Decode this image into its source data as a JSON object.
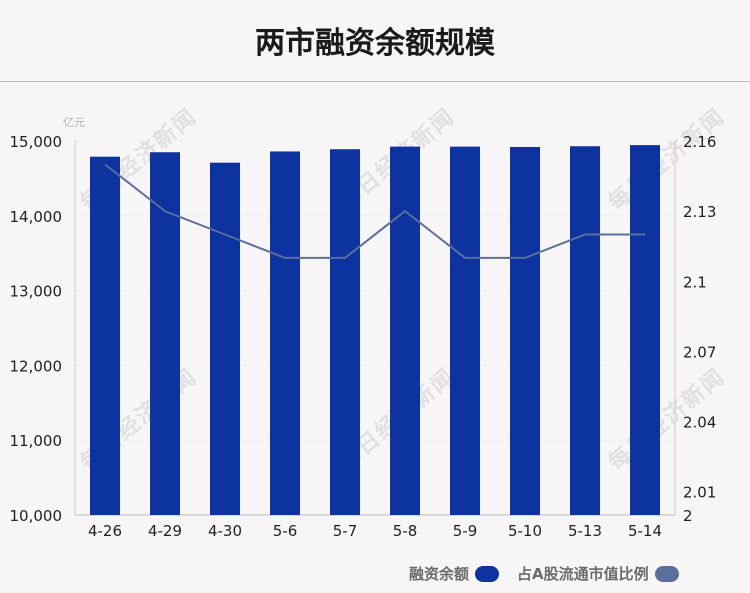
{
  "title": "两市融资余额规模",
  "watermark": "每日经济新闻",
  "chart_data": {
    "type": "bar",
    "categories": [
      "4-26",
      "4-29",
      "4-30",
      "5-6",
      "5-7",
      "5-8",
      "5-9",
      "5-10",
      "5-13",
      "5-14"
    ],
    "series": [
      {
        "name": "融资余额",
        "type": "bar",
        "axis": "left",
        "color": "#0c33a0",
        "values": [
          14790,
          14850,
          14710,
          14860,
          14890,
          14925,
          14925,
          14920,
          14930,
          14945
        ]
      },
      {
        "name": "占A股流通市值比例",
        "type": "line",
        "axis": "right",
        "color": "#5b6f9c",
        "values": [
          2.15,
          2.13,
          2.12,
          2.11,
          2.11,
          2.13,
          2.11,
          2.11,
          2.12,
          2.12
        ]
      }
    ],
    "y_left": {
      "unit": "亿元",
      "ylim": [
        10000,
        15000
      ],
      "ticks": [
        10000,
        11000,
        12000,
        13000,
        14000,
        15000
      ],
      "tick_labels": [
        "10,000",
        "11,000",
        "12,000",
        "13,000",
        "14,000",
        "15,000"
      ]
    },
    "y_right": {
      "ylim": [
        2,
        2.16
      ],
      "ticks": [
        2,
        2.01,
        2.04,
        2.07,
        2.1,
        2.13,
        2.16
      ],
      "tick_labels": [
        "2",
        "2.01",
        "2.04",
        "2.07",
        "2.1",
        "2.13",
        "2.16"
      ]
    },
    "grid": true,
    "legend": "bottom-right"
  }
}
